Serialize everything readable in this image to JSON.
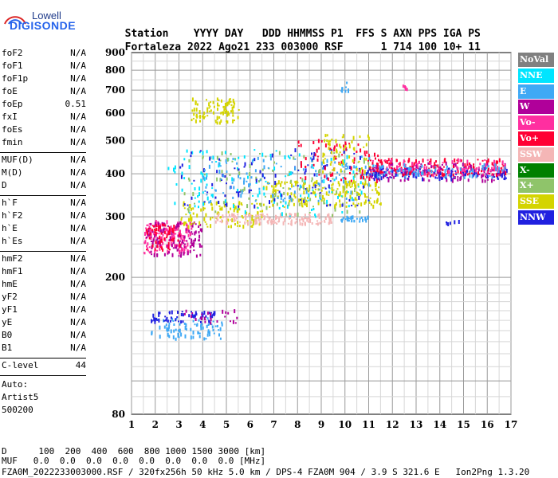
{
  "logo": {
    "top": "Lowell",
    "main": "DIGISONDE"
  },
  "header": {
    "station_label": "Station",
    "date_label": "YYYY DAY",
    "doy_label": "DDD",
    "time_label": "HHMMSS",
    "p1_label": "P1",
    "ffs_label": "FFS",
    "s_label": "S",
    "axn_label": "AXN",
    "pps_label": "PPS",
    "iga_label": "IGA",
    "ps_label": "PS",
    "station": "Fortaleza",
    "date": "2022 Ago21",
    "doy": "233",
    "time": "003000",
    "p1": "RSF",
    "ffs": "",
    "s": "1",
    "axn": "714",
    "pps": "100",
    "iga": "10+",
    "ps": "11"
  },
  "params_group1": [
    {
      "name": "foF2",
      "value": "N/A"
    },
    {
      "name": "foF1",
      "value": "N/A"
    },
    {
      "name": "foF1p",
      "value": "N/A"
    },
    {
      "name": "foE",
      "value": "N/A"
    },
    {
      "name": "foEp",
      "value": "0.51"
    },
    {
      "name": "fxI",
      "value": "N/A"
    },
    {
      "name": "foEs",
      "value": "N/A"
    },
    {
      "name": "fmin",
      "value": "N/A"
    }
  ],
  "params_group2": [
    {
      "name": "MUF(D)",
      "value": "N/A"
    },
    {
      "name": "M(D)",
      "value": "N/A"
    },
    {
      "name": "D",
      "value": "N/A"
    }
  ],
  "params_group3": [
    {
      "name": "h`F",
      "value": "N/A"
    },
    {
      "name": "h`F2",
      "value": "N/A"
    },
    {
      "name": "h`E",
      "value": "N/A"
    },
    {
      "name": "h`Es",
      "value": "N/A"
    }
  ],
  "params_group4": [
    {
      "name": "hmF2",
      "value": "N/A"
    },
    {
      "name": "hmF1",
      "value": "N/A"
    },
    {
      "name": "hmE",
      "value": "N/A"
    },
    {
      "name": "yF2",
      "value": "N/A"
    },
    {
      "name": "yF1",
      "value": "N/A"
    },
    {
      "name": "yE",
      "value": "N/A"
    },
    {
      "name": "B0",
      "value": "N/A"
    },
    {
      "name": "B1",
      "value": "N/A"
    }
  ],
  "clevel": {
    "name": "C-level",
    "value": "44"
  },
  "auto": {
    "line1": "Auto:",
    "line2": "Artist5",
    "line3": "500200"
  },
  "legend": [
    {
      "label": "NoVal",
      "color": "#808080"
    },
    {
      "label": "NNE",
      "color": "#00e5ff"
    },
    {
      "label": "E",
      "color": "#3fa9f5"
    },
    {
      "label": "W",
      "color": "#b0009a"
    },
    {
      "label": "Vo-",
      "color": "#ff2fa0"
    },
    {
      "label": "Vo+",
      "color": "#ff0033"
    },
    {
      "label": "SSW",
      "color": "#f4b6b6"
    },
    {
      "label": "X-",
      "color": "#008000"
    },
    {
      "label": "X+",
      "color": "#8fc46a"
    },
    {
      "label": "SSE",
      "color": "#d4d400"
    },
    {
      "label": "NNW",
      "color": "#2020e0"
    }
  ],
  "footer": {
    "d_line": "D      100  200  400  600  800 1000 1500 3000 [km]",
    "muf_line": "MUF   0.0  0.0  0.0  0.0  0.0  0.0  0.0  0.0 [MHz]",
    "info_line": "FZA0M_2022233003000.RSF / 320fx256h 50 kHz 5.0 km / DPS-4 FZA0M 904 / 3.9 S 321.6 E   Ion2Png 1.3.20"
  },
  "chart_data": {
    "type": "scatter",
    "xlim": [
      1,
      17
    ],
    "ylim": [
      80,
      900
    ],
    "x_ticks": [
      "1",
      "2",
      "3",
      "4",
      "5",
      "6",
      "7",
      "8",
      "9",
      "10",
      "11",
      "12",
      "13",
      "14",
      "15",
      "16",
      "17"
    ],
    "y_ticks": [
      "80",
      "200",
      "300",
      "400",
      "500",
      "600",
      "700",
      "800",
      "900"
    ],
    "y_tick_values": [
      80,
      200,
      300,
      400,
      500,
      600,
      700,
      800,
      900
    ],
    "grid": true,
    "y_scale": "log",
    "clusters": [
      {
        "series": "E",
        "x": [
          1.8,
          4.8
        ],
        "y": [
          132,
          152
        ],
        "n": 80
      },
      {
        "series": "NNW",
        "x": [
          1.8,
          4.5
        ],
        "y": [
          148,
          160
        ],
        "n": 60
      },
      {
        "series": "W",
        "x": [
          3.2,
          5.5
        ],
        "y": [
          145,
          160
        ],
        "n": 25
      },
      {
        "series": "Vo-",
        "x": [
          1.5,
          3.5
        ],
        "y": [
          235,
          290
        ],
        "n": 160
      },
      {
        "series": "W",
        "x": [
          1.6,
          4.0
        ],
        "y": [
          230,
          290
        ],
        "n": 120
      },
      {
        "series": "Vo+",
        "x": [
          1.6,
          3.0
        ],
        "y": [
          240,
          285
        ],
        "n": 60
      },
      {
        "series": "SSE",
        "x": [
          3.0,
          6.5
        ],
        "y": [
          280,
          330
        ],
        "n": 110
      },
      {
        "series": "SSE",
        "x": [
          3.5,
          5.5
        ],
        "y": [
          560,
          660
        ],
        "n": 90
      },
      {
        "series": "SSE",
        "x": [
          6.5,
          11.5
        ],
        "y": [
          320,
          380
        ],
        "n": 180
      },
      {
        "series": "SSW",
        "x": [
          4.5,
          9.5
        ],
        "y": [
          285,
          305
        ],
        "n": 140
      },
      {
        "series": "NNE",
        "x": [
          2.5,
          11.0
        ],
        "y": [
          300,
          470
        ],
        "n": 130
      },
      {
        "series": "X+",
        "x": [
          3.0,
          11.0
        ],
        "y": [
          300,
          460
        ],
        "n": 110
      },
      {
        "series": "NNW",
        "x": [
          3.0,
          11.0
        ],
        "y": [
          320,
          470
        ],
        "n": 100
      },
      {
        "series": "E",
        "x": [
          4.0,
          11.0
        ],
        "y": [
          330,
          450
        ],
        "n": 110
      },
      {
        "series": "Vo+",
        "x": [
          8.0,
          11.5
        ],
        "y": [
          380,
          500
        ],
        "n": 80
      },
      {
        "series": "SSE",
        "x": [
          9.0,
          11.0
        ],
        "y": [
          400,
          520
        ],
        "n": 60
      },
      {
        "series": "W",
        "x": [
          11.0,
          16.8
        ],
        "y": [
          380,
          430
        ],
        "n": 150
      },
      {
        "series": "NNW",
        "x": [
          11.0,
          16.8
        ],
        "y": [
          385,
          415
        ],
        "n": 120
      },
      {
        "series": "Vo+",
        "x": [
          11.0,
          16.8
        ],
        "y": [
          395,
          440
        ],
        "n": 140
      },
      {
        "series": "Vo-",
        "x": [
          11.0,
          16.8
        ],
        "y": [
          395,
          440
        ],
        "n": 90
      },
      {
        "series": "E",
        "x": [
          11.0,
          16.8
        ],
        "y": [
          390,
          425
        ],
        "n": 70
      },
      {
        "series": "E",
        "x": [
          9.8,
          10.3
        ],
        "y": [
          690,
          740
        ],
        "n": 10
      },
      {
        "series": "E",
        "x": [
          9.8,
          11.0
        ],
        "y": [
          290,
          300
        ],
        "n": 30
      },
      {
        "series": "Vo-",
        "x": [
          12.4,
          12.6
        ],
        "y": [
          700,
          720
        ],
        "n": 6
      },
      {
        "series": "NNW",
        "x": [
          14.2,
          14.8
        ],
        "y": [
          285,
          290
        ],
        "n": 6
      }
    ]
  }
}
